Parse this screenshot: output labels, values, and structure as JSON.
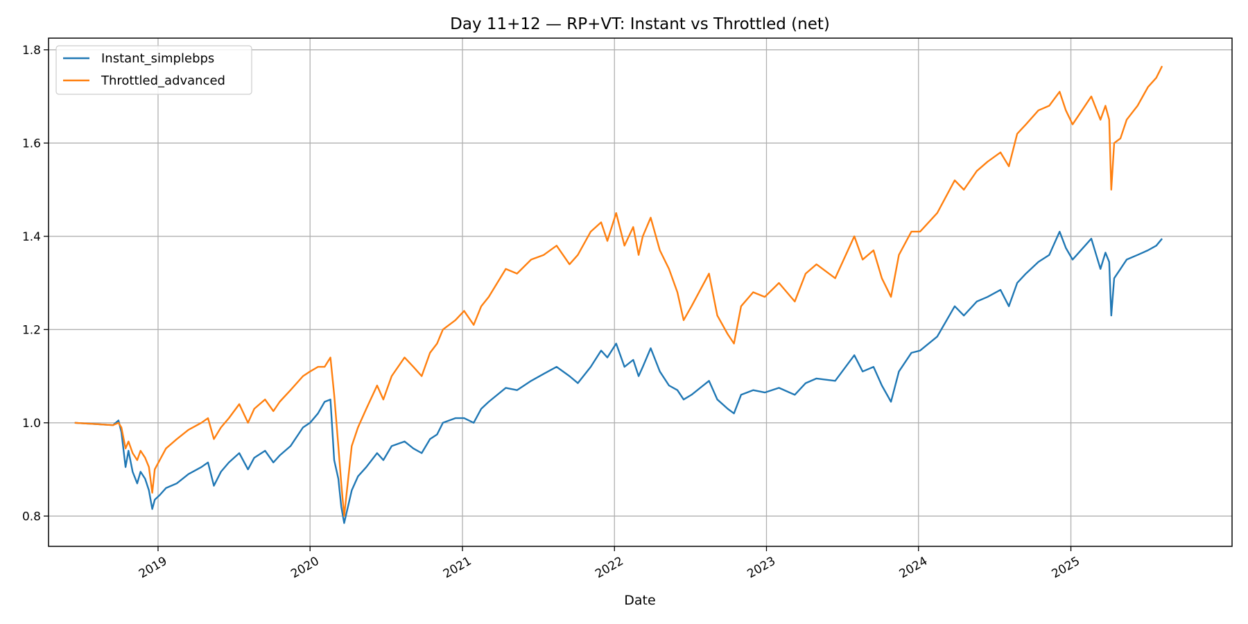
{
  "chart_data": {
    "type": "line",
    "title": "Day 11+12 — RP+VT: Instant vs Throttled (net)",
    "xlabel": "Date",
    "ylabel": "",
    "xlim": [
      "2018-04-13",
      "2026-01-23"
    ],
    "ylim": [
      0.735,
      1.825
    ],
    "x_ticks": [
      "2019-01-01",
      "2020-01-01",
      "2021-01-01",
      "2022-01-01",
      "2023-01-01",
      "2024-01-01",
      "2025-01-01"
    ],
    "x_tick_labels": [
      "2019",
      "2020",
      "2021",
      "2022",
      "2023",
      "2024",
      "2025"
    ],
    "y_ticks": [
      0.8,
      1.0,
      1.2,
      1.4,
      1.6,
      1.8
    ],
    "y_tick_labels": [
      "0.8",
      "1.0",
      "1.2",
      "1.4",
      "1.6",
      "1.8"
    ],
    "grid": true,
    "legend_position": "top-left",
    "series": [
      {
        "name": "Instant_simplebps",
        "color": "#1f77b4",
        "x": [
          "2018-06-15",
          "2018-09-15",
          "2018-09-28",
          "2018-10-05",
          "2018-10-15",
          "2018-10-22",
          "2018-11-01",
          "2018-11-12",
          "2018-11-20",
          "2018-12-01",
          "2018-12-10",
          "2018-12-18",
          "2018-12-24",
          "2019-01-05",
          "2019-01-20",
          "2019-02-15",
          "2019-03-15",
          "2019-04-15",
          "2019-05-01",
          "2019-05-15",
          "2019-06-01",
          "2019-06-20",
          "2019-07-15",
          "2019-08-05",
          "2019-08-20",
          "2019-09-15",
          "2019-10-05",
          "2019-10-20",
          "2019-11-15",
          "2019-12-15",
          "2020-01-01",
          "2020-01-20",
          "2020-02-05",
          "2020-02-19",
          "2020-02-28",
          "2020-03-09",
          "2020-03-16",
          "2020-03-23",
          "2020-04-10",
          "2020-04-25",
          "2020-05-15",
          "2020-06-10",
          "2020-06-25",
          "2020-07-15",
          "2020-08-15",
          "2020-09-05",
          "2020-09-25",
          "2020-10-15",
          "2020-11-01",
          "2020-11-15",
          "2020-12-15",
          "2021-01-05",
          "2021-01-28",
          "2021-02-15",
          "2021-03-05",
          "2021-04-15",
          "2021-05-12",
          "2021-06-15",
          "2021-07-15",
          "2021-08-15",
          "2021-09-15",
          "2021-10-05",
          "2021-11-05",
          "2021-11-30",
          "2021-12-15",
          "2022-01-05",
          "2022-01-25",
          "2022-02-15",
          "2022-02-28",
          "2022-03-10",
          "2022-03-29",
          "2022-04-20",
          "2022-05-12",
          "2022-06-01",
          "2022-06-16",
          "2022-07-05",
          "2022-08-16",
          "2022-09-05",
          "2022-09-30",
          "2022-10-15",
          "2022-11-01",
          "2022-11-30",
          "2022-12-28",
          "2023-01-31",
          "2023-03-10",
          "2023-04-05",
          "2023-05-01",
          "2023-06-15",
          "2023-07-31",
          "2023-08-20",
          "2023-09-15",
          "2023-10-05",
          "2023-10-27",
          "2023-11-15",
          "2023-12-15",
          "2024-01-05",
          "2024-02-15",
          "2024-03-28",
          "2024-04-19",
          "2024-05-20",
          "2024-06-15",
          "2024-07-16",
          "2024-08-05",
          "2024-08-25",
          "2024-09-15",
          "2024-10-15",
          "2024-11-10",
          "2024-12-05",
          "2024-12-20",
          "2025-01-05",
          "2025-02-19",
          "2025-03-13",
          "2025-03-25",
          "2025-04-03",
          "2025-04-08",
          "2025-04-15",
          "2025-04-30",
          "2025-05-15",
          "2025-06-10",
          "2025-07-05",
          "2025-07-25",
          "2025-08-08"
        ],
        "values": [
          1.0,
          0.995,
          1.005,
          0.98,
          0.905,
          0.94,
          0.895,
          0.87,
          0.895,
          0.88,
          0.855,
          0.815,
          0.835,
          0.845,
          0.86,
          0.87,
          0.89,
          0.905,
          0.915,
          0.865,
          0.895,
          0.915,
          0.935,
          0.9,
          0.925,
          0.94,
          0.915,
          0.93,
          0.95,
          0.99,
          1.0,
          1.02,
          1.045,
          1.05,
          0.92,
          0.88,
          0.82,
          0.785,
          0.855,
          0.885,
          0.905,
          0.935,
          0.92,
          0.95,
          0.96,
          0.945,
          0.935,
          0.965,
          0.975,
          1.0,
          1.01,
          1.01,
          1.0,
          1.03,
          1.045,
          1.075,
          1.07,
          1.09,
          1.105,
          1.12,
          1.1,
          1.085,
          1.12,
          1.155,
          1.14,
          1.17,
          1.12,
          1.135,
          1.1,
          1.12,
          1.16,
          1.11,
          1.08,
          1.07,
          1.05,
          1.06,
          1.09,
          1.05,
          1.03,
          1.02,
          1.06,
          1.07,
          1.065,
          1.075,
          1.06,
          1.085,
          1.095,
          1.09,
          1.145,
          1.11,
          1.12,
          1.08,
          1.045,
          1.11,
          1.15,
          1.155,
          1.185,
          1.25,
          1.23,
          1.26,
          1.27,
          1.285,
          1.25,
          1.3,
          1.32,
          1.345,
          1.36,
          1.41,
          1.375,
          1.35,
          1.395,
          1.33,
          1.365,
          1.345,
          1.23,
          1.31,
          1.33,
          1.35,
          1.36,
          1.37,
          1.38,
          1.395
        ]
      },
      {
        "name": "Throttled_advanced",
        "color": "#ff7f0e",
        "x": [
          "2018-06-15",
          "2018-09-15",
          "2018-09-28",
          "2018-10-05",
          "2018-10-15",
          "2018-10-22",
          "2018-11-01",
          "2018-11-12",
          "2018-11-20",
          "2018-12-01",
          "2018-12-10",
          "2018-12-18",
          "2018-12-24",
          "2019-01-05",
          "2019-01-20",
          "2019-02-15",
          "2019-03-15",
          "2019-04-15",
          "2019-05-01",
          "2019-05-15",
          "2019-06-01",
          "2019-06-20",
          "2019-07-15",
          "2019-08-05",
          "2019-08-20",
          "2019-09-15",
          "2019-10-05",
          "2019-10-20",
          "2019-11-15",
          "2019-12-15",
          "2020-01-01",
          "2020-01-20",
          "2020-02-05",
          "2020-02-19",
          "2020-02-28",
          "2020-03-09",
          "2020-03-16",
          "2020-03-23",
          "2020-04-10",
          "2020-04-25",
          "2020-05-15",
          "2020-06-10",
          "2020-06-25",
          "2020-07-15",
          "2020-08-15",
          "2020-09-05",
          "2020-09-25",
          "2020-10-15",
          "2020-11-01",
          "2020-11-15",
          "2020-12-15",
          "2021-01-05",
          "2021-01-28",
          "2021-02-15",
          "2021-03-05",
          "2021-04-15",
          "2021-05-12",
          "2021-06-15",
          "2021-07-15",
          "2021-08-15",
          "2021-09-15",
          "2021-10-05",
          "2021-11-05",
          "2021-11-30",
          "2021-12-15",
          "2022-01-05",
          "2022-01-25",
          "2022-02-15",
          "2022-02-28",
          "2022-03-10",
          "2022-03-29",
          "2022-04-20",
          "2022-05-12",
          "2022-06-01",
          "2022-06-16",
          "2022-07-05",
          "2022-08-16",
          "2022-09-05",
          "2022-09-30",
          "2022-10-15",
          "2022-11-01",
          "2022-11-30",
          "2022-12-28",
          "2023-01-31",
          "2023-03-10",
          "2023-04-05",
          "2023-05-01",
          "2023-06-15",
          "2023-07-31",
          "2023-08-20",
          "2023-09-15",
          "2023-10-05",
          "2023-10-27",
          "2023-11-15",
          "2023-12-15",
          "2024-01-05",
          "2024-02-15",
          "2024-03-28",
          "2024-04-19",
          "2024-05-20",
          "2024-06-15",
          "2024-07-16",
          "2024-08-05",
          "2024-08-25",
          "2024-09-15",
          "2024-10-15",
          "2024-11-10",
          "2024-12-05",
          "2024-12-20",
          "2025-01-05",
          "2025-02-19",
          "2025-03-13",
          "2025-03-25",
          "2025-04-03",
          "2025-04-08",
          "2025-04-15",
          "2025-04-30",
          "2025-05-15",
          "2025-06-10",
          "2025-07-05",
          "2025-07-25",
          "2025-08-08"
        ],
        "values": [
          1.0,
          0.995,
          1.0,
          0.99,
          0.945,
          0.96,
          0.935,
          0.92,
          0.94,
          0.925,
          0.905,
          0.85,
          0.9,
          0.92,
          0.945,
          0.965,
          0.985,
          1.0,
          1.01,
          0.965,
          0.99,
          1.01,
          1.04,
          1.0,
          1.03,
          1.05,
          1.025,
          1.045,
          1.07,
          1.1,
          1.11,
          1.12,
          1.12,
          1.14,
          1.06,
          0.95,
          0.87,
          0.8,
          0.95,
          0.99,
          1.03,
          1.08,
          1.05,
          1.1,
          1.14,
          1.12,
          1.1,
          1.15,
          1.17,
          1.2,
          1.22,
          1.24,
          1.21,
          1.25,
          1.27,
          1.33,
          1.32,
          1.35,
          1.36,
          1.38,
          1.34,
          1.36,
          1.41,
          1.43,
          1.39,
          1.45,
          1.38,
          1.42,
          1.36,
          1.4,
          1.44,
          1.37,
          1.33,
          1.28,
          1.22,
          1.25,
          1.32,
          1.23,
          1.19,
          1.17,
          1.25,
          1.28,
          1.27,
          1.3,
          1.26,
          1.32,
          1.34,
          1.31,
          1.4,
          1.35,
          1.37,
          1.31,
          1.27,
          1.36,
          1.41,
          1.41,
          1.45,
          1.52,
          1.5,
          1.54,
          1.56,
          1.58,
          1.55,
          1.62,
          1.64,
          1.67,
          1.68,
          1.71,
          1.67,
          1.64,
          1.7,
          1.65,
          1.68,
          1.65,
          1.5,
          1.6,
          1.61,
          1.65,
          1.68,
          1.72,
          1.74,
          1.765
        ]
      }
    ]
  }
}
